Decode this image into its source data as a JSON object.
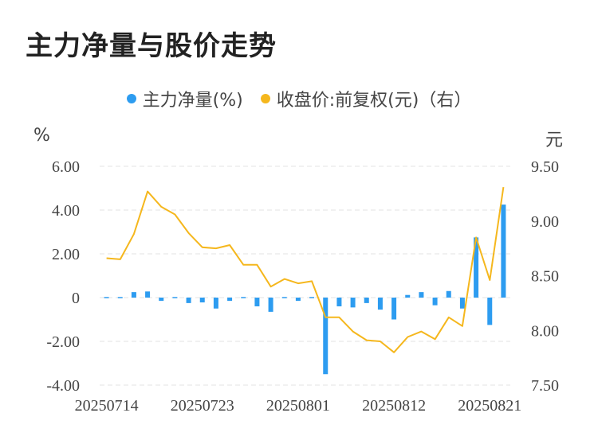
{
  "chart_data": {
    "type": "bar+line",
    "title": "主力净量与股价走势",
    "legend": [
      {
        "name": "主力净量(%)",
        "color": "#2d9cf0"
      },
      {
        "name": "收盘价:前复权(元)（右）",
        "color": "#f5b71d"
      }
    ],
    "left_unit": "%",
    "right_unit": "元",
    "left_ylim": [
      -4,
      6
    ],
    "right_ylim": [
      7.5,
      9.5
    ],
    "left_ticks": [
      "6.00",
      "4.00",
      "2.00",
      "0",
      "-2.00",
      "-4.00"
    ],
    "right_ticks": [
      "9.50",
      "9.00",
      "8.50",
      "8.00",
      "7.50"
    ],
    "x_tick_labels": [
      "20250714",
      "20250723",
      "20250801",
      "20250812",
      "20250821"
    ],
    "x_tick_index": [
      0,
      7,
      14,
      21,
      28
    ],
    "net_flow": [
      -0.05,
      -0.05,
      0.25,
      0.28,
      -0.15,
      -0.05,
      -0.25,
      -0.22,
      -0.5,
      -0.15,
      0.05,
      -0.4,
      -0.65,
      -0.05,
      -0.15,
      0.02,
      -3.5,
      -0.4,
      -0.45,
      -0.25,
      -0.55,
      -1.0,
      0.12,
      0.25,
      -0.35,
      0.3,
      -0.5,
      2.75,
      -1.25,
      4.25
    ],
    "close_price": [
      8.66,
      8.65,
      8.88,
      9.27,
      9.13,
      9.06,
      8.89,
      8.76,
      8.75,
      8.78,
      8.6,
      8.6,
      8.4,
      8.47,
      8.43,
      8.45,
      8.12,
      8.12,
      7.99,
      7.91,
      7.9,
      7.8,
      7.94,
      7.99,
      7.92,
      8.12,
      8.04,
      8.85,
      8.46,
      9.31
    ],
    "grid": true,
    "legend_position": "top-center"
  }
}
